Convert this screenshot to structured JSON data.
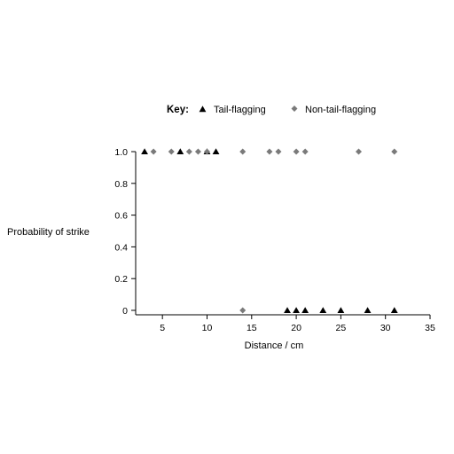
{
  "chart_data": {
    "type": "scatter",
    "title": "",
    "xlabel": "Distance / cm",
    "ylabel": "Probability of strike",
    "xlim": [
      2,
      35
    ],
    "ylim": [
      0,
      1
    ],
    "x_ticks": [
      5,
      10,
      15,
      20,
      25,
      30,
      35
    ],
    "y_ticks": [
      "0",
      "0.2",
      "0.4",
      "0.6",
      "0.8",
      "1.0"
    ],
    "y_tick_values": [
      0,
      0.2,
      0.4,
      0.6,
      0.8,
      1.0
    ],
    "grid": false,
    "legend": {
      "title": "Key",
      "placement": "top"
    },
    "series": [
      {
        "name": "Tail-flagging",
        "marker": "triangle",
        "color": "#000000",
        "points": [
          {
            "x": 3,
            "y": 1
          },
          {
            "x": 7,
            "y": 1
          },
          {
            "x": 10,
            "y": 1
          },
          {
            "x": 11,
            "y": 1
          },
          {
            "x": 19,
            "y": 0
          },
          {
            "x": 20,
            "y": 0
          },
          {
            "x": 21,
            "y": 0
          },
          {
            "x": 23,
            "y": 0
          },
          {
            "x": 25,
            "y": 0
          },
          {
            "x": 28,
            "y": 0
          },
          {
            "x": 31,
            "y": 0
          }
        ]
      },
      {
        "name": "Non-tail-flagging",
        "marker": "diamond",
        "color": "#7a7a7a",
        "points": [
          {
            "x": 4,
            "y": 1
          },
          {
            "x": 6,
            "y": 1
          },
          {
            "x": 8,
            "y": 1
          },
          {
            "x": 9,
            "y": 1
          },
          {
            "x": 10,
            "y": 1
          },
          {
            "x": 14,
            "y": 1
          },
          {
            "x": 17,
            "y": 1
          },
          {
            "x": 18,
            "y": 1
          },
          {
            "x": 20,
            "y": 1
          },
          {
            "x": 21,
            "y": 1
          },
          {
            "x": 27,
            "y": 1
          },
          {
            "x": 31,
            "y": 1
          },
          {
            "x": 14,
            "y": 0
          }
        ]
      }
    ]
  }
}
